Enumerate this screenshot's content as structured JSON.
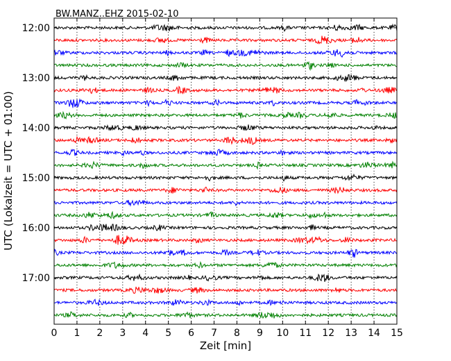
{
  "chart_data": {
    "type": "line",
    "title": "BW.MANZ..EHZ 2015-02-10",
    "xlabel": "Zeit  [min]",
    "ylabel": "UTC (Lokalzeit = UTC + 01:00)",
    "xlim": [
      0,
      15
    ],
    "x_ticks": [
      0,
      1,
      2,
      3,
      4,
      5,
      6,
      7,
      8,
      9,
      10,
      11,
      12,
      13,
      14,
      15
    ],
    "x_tick_labels": [
      "0",
      "1",
      "2",
      "3",
      "4",
      "5",
      "6",
      "7",
      "8",
      "9",
      "10",
      "11",
      "12",
      "13",
      "14",
      "15"
    ],
    "y_tick_labels": [
      "12:00",
      "13:00",
      "14:00",
      "15:00",
      "16:00",
      "17:00"
    ],
    "y_tick_rows": [
      0,
      4,
      8,
      12,
      16,
      20
    ],
    "grid": "vertical dotted",
    "colors": [
      "#000000",
      "#ff0000",
      "#0000ff",
      "#008000"
    ],
    "traces": [
      {
        "start": "12:00",
        "color": "#000000"
      },
      {
        "start": "12:15",
        "color": "#ff0000"
      },
      {
        "start": "12:30",
        "color": "#0000ff"
      },
      {
        "start": "12:45",
        "color": "#008000"
      },
      {
        "start": "13:00",
        "color": "#000000"
      },
      {
        "start": "13:15",
        "color": "#ff0000"
      },
      {
        "start": "13:30",
        "color": "#0000ff"
      },
      {
        "start": "13:45",
        "color": "#008000"
      },
      {
        "start": "14:00",
        "color": "#000000"
      },
      {
        "start": "14:15",
        "color": "#ff0000"
      },
      {
        "start": "14:30",
        "color": "#0000ff"
      },
      {
        "start": "14:45",
        "color": "#008000"
      },
      {
        "start": "15:00",
        "color": "#000000"
      },
      {
        "start": "15:15",
        "color": "#ff0000"
      },
      {
        "start": "15:30",
        "color": "#0000ff"
      },
      {
        "start": "15:45",
        "color": "#008000"
      },
      {
        "start": "16:00",
        "color": "#000000"
      },
      {
        "start": "16:15",
        "color": "#ff0000"
      },
      {
        "start": "16:30",
        "color": "#0000ff"
      },
      {
        "start": "16:45",
        "color": "#008000"
      },
      {
        "start": "17:00",
        "color": "#000000"
      },
      {
        "start": "17:15",
        "color": "#ff0000"
      },
      {
        "start": "17:30",
        "color": "#0000ff"
      },
      {
        "start": "17:45",
        "color": "#008000"
      }
    ]
  }
}
